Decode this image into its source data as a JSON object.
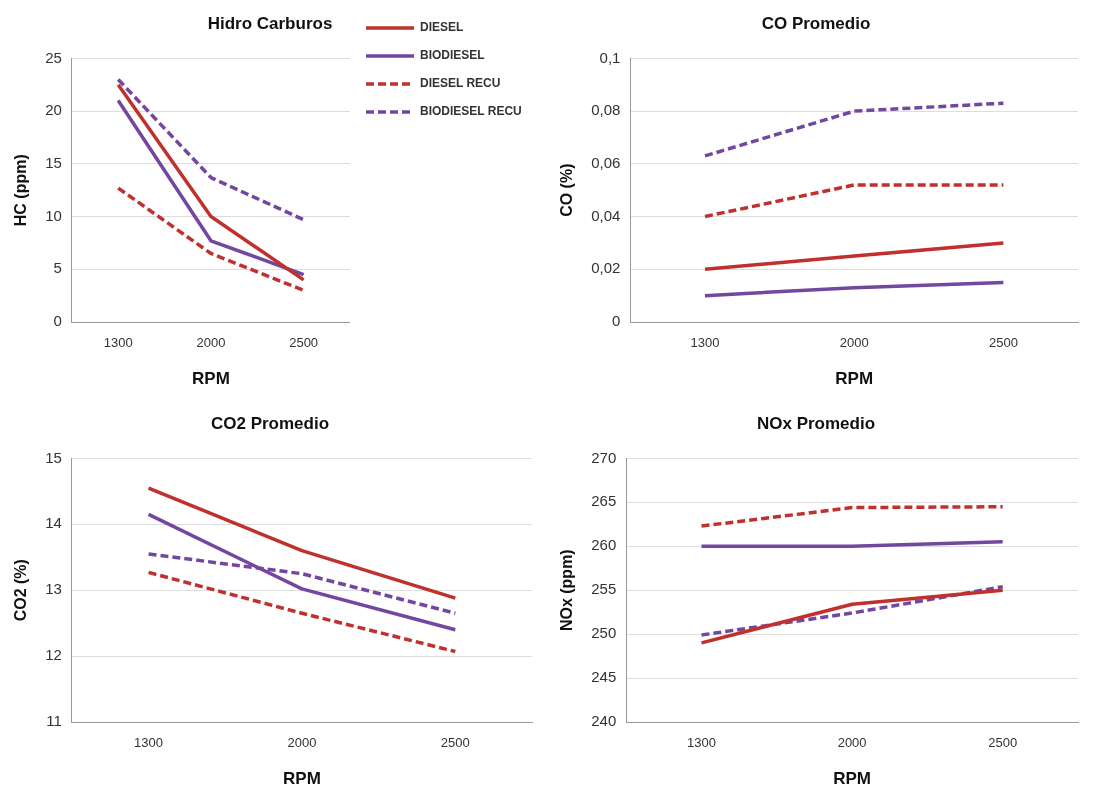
{
  "chart_data": [
    {
      "type": "line",
      "title": "Hidro Carburos",
      "xlabel": "RPM",
      "ylabel": "HC (ppm)",
      "categories": [
        "1300",
        "2000",
        "2500"
      ],
      "ylim": [
        0,
        25
      ],
      "yticks": [
        0,
        5,
        10,
        15,
        20,
        25
      ],
      "grid": "y",
      "legend": "top right",
      "marker": "none",
      "series": [
        {
          "name": "DIESEL",
          "color": "#c0302c",
          "line_style": "solid",
          "values": [
            22.5,
            10,
            4
          ]
        },
        {
          "name": "BIODIESEL",
          "color": "#7346a0",
          "line_style": "solid",
          "values": [
            21,
            7.7,
            4.5
          ]
        },
        {
          "name": "DIESEL RECU",
          "color": "#c0302c",
          "line_style": "dashed",
          "values": [
            12.7,
            6.5,
            3
          ]
        },
        {
          "name": "BIODIESEL RECU",
          "color": "#7346a0",
          "line_style": "dashed",
          "values": [
            23,
            13.7,
            9.7
          ]
        }
      ]
    },
    {
      "type": "line",
      "title": "CO Promedio",
      "xlabel": "RPM",
      "ylabel": "CO (%)",
      "categories": [
        "1300",
        "2000",
        "2500"
      ],
      "ylim": [
        0,
        0.1
      ],
      "yticks": [
        0,
        {
          "value": 0.02,
          "label": "0,02"
        },
        {
          "value": 0.04,
          "label": "0,04"
        },
        {
          "value": 0.06,
          "label": "0,06"
        },
        {
          "value": 0.08,
          "label": "0,08"
        },
        {
          "value": 0.1,
          "label": "0,1"
        }
      ],
      "grid": "y",
      "marker": "none",
      "series": [
        {
          "color": "#c0302c",
          "line_style": "solid",
          "values": [
            0.02,
            0.025,
            0.03
          ]
        },
        {
          "color": "#7346a0",
          "line_style": "solid",
          "values": [
            0.01,
            0.013,
            0.015
          ]
        },
        {
          "color": "#c0302c",
          "line_style": "dashed",
          "values": [
            0.04,
            0.052,
            0.052
          ]
        },
        {
          "color": "#7346a0",
          "line_style": "dashed",
          "values": [
            0.063,
            0.08,
            0.083
          ]
        }
      ]
    },
    {
      "type": "line",
      "title": "CO2 Promedio",
      "xlabel": "RPM",
      "ylabel": "CO2 (%)",
      "categories": [
        "1300",
        "2000",
        "2500"
      ],
      "ylim": [
        11,
        15
      ],
      "yticks": [
        11,
        12,
        13,
        14,
        15
      ],
      "grid": "y",
      "marker": "none",
      "series": [
        {
          "color": "#c0302c",
          "line_style": "solid",
          "values": [
            14.55,
            13.6,
            12.88
          ]
        },
        {
          "color": "#7346a0",
          "line_style": "solid",
          "values": [
            14.15,
            13.02,
            12.4
          ]
        },
        {
          "color": "#c0302c",
          "line_style": "dashed",
          "values": [
            13.27,
            12.65,
            12.07
          ]
        },
        {
          "color": "#7346a0",
          "line_style": "dashed",
          "values": [
            13.55,
            13.25,
            12.65
          ]
        }
      ]
    },
    {
      "type": "line",
      "title": "NOx Promedio",
      "xlabel": "RPM",
      "ylabel": "NOx (ppm)",
      "categories": [
        "1300",
        "2000",
        "2500"
      ],
      "ylim": [
        240,
        270
      ],
      "yticks": [
        240,
        245,
        250,
        255,
        260,
        265,
        270
      ],
      "grid": "y",
      "marker": "none",
      "series": [
        {
          "color": "#c0302c",
          "line_style": "solid",
          "values": [
            249,
            253.4,
            255
          ]
        },
        {
          "color": "#7346a0",
          "line_style": "solid",
          "values": [
            260,
            260,
            260.5
          ]
        },
        {
          "color": "#c0302c",
          "line_style": "dashed",
          "values": [
            262.3,
            264.4,
            264.5
          ]
        },
        {
          "color": "#7346a0",
          "line_style": "dashed",
          "values": [
            249.9,
            252.4,
            255.4
          ]
        }
      ]
    }
  ]
}
